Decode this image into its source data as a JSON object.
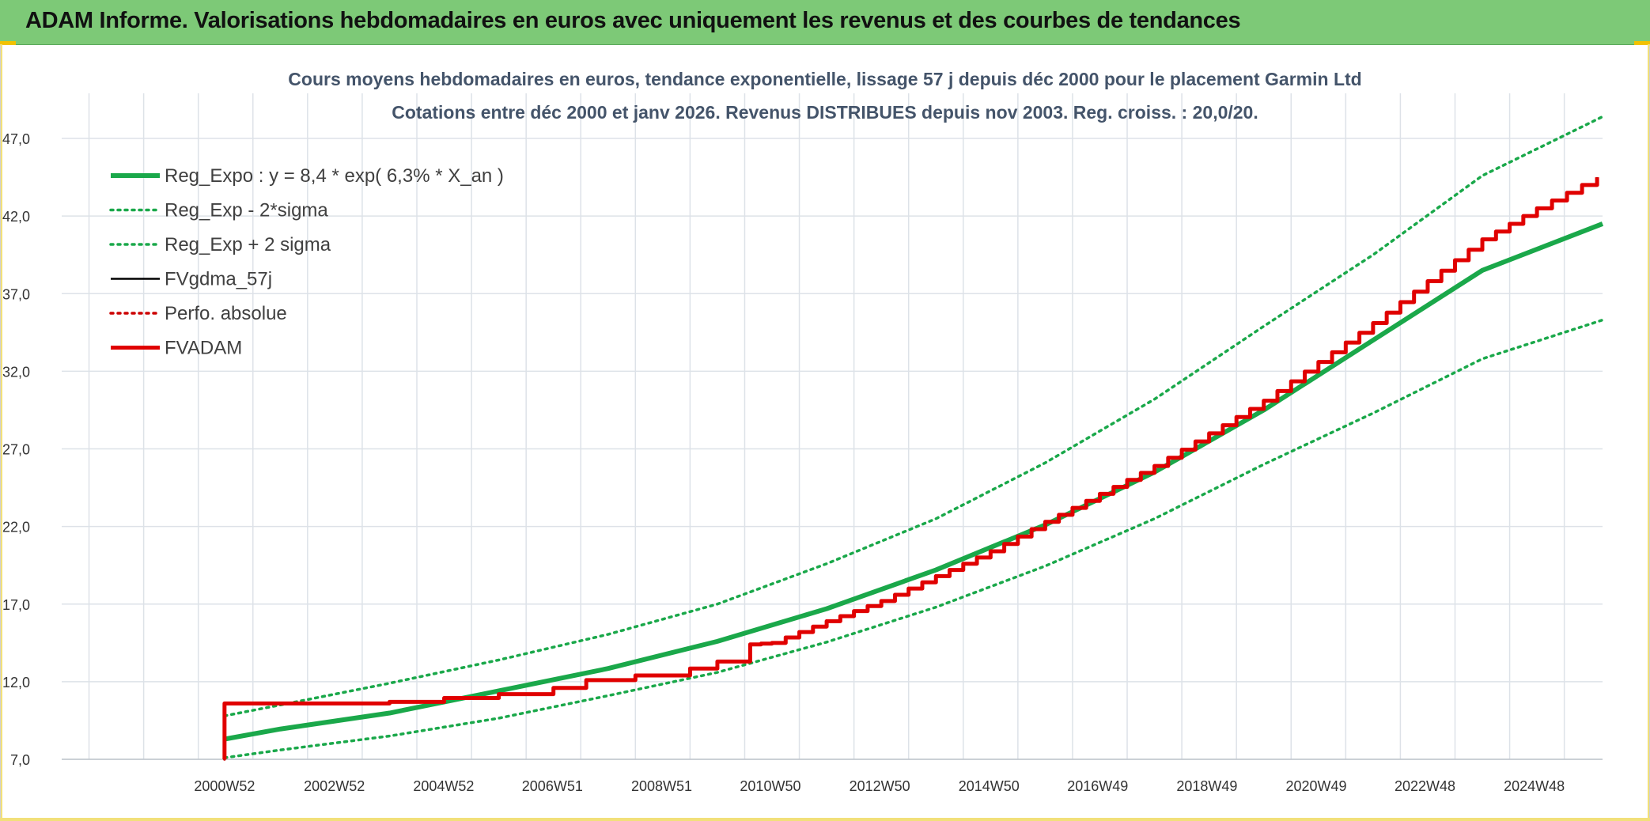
{
  "header": {
    "report_title": "ADAM Informe. Valorisations hebdomadaires en euros avec uniquement les revenus et des courbes de tendances"
  },
  "colors": {
    "header_bg": "#7dc977",
    "accent_yellow": "#f2c200",
    "reg_expo": "#1aa84a",
    "sigma_bands": "#1aa84a",
    "fvgdma": "#000000",
    "perfo_absolue": "#cc0000",
    "fvadam": "#e00000",
    "grid": "#dde2e8",
    "title_text": "#44546a"
  },
  "chart_data": {
    "type": "line",
    "title": "Cours moyens hebdomadaires en euros, tendance exponentielle, lissage 57 j depuis déc 2000 pour le placement Garmin Ltd",
    "subtitle": "Cotations entre déc 2000 et janv 2026. Revenus DISTRIBUES depuis nov 2003. Reg. croiss. : 20,0/20.",
    "xlabel": "",
    "ylabel": "",
    "ylim": [
      7.0,
      47.0
    ],
    "yticks": [
      "47,0",
      "42,0",
      "37,0",
      "32,0",
      "27,0",
      "22,0",
      "17,0",
      "12,0",
      "7,0"
    ],
    "xlim": [
      1998.0,
      2026.2
    ],
    "xtick_labels": [
      "2000W52",
      "2002W52",
      "2004W52",
      "2006W51",
      "2008W51",
      "2010W50",
      "2012W50",
      "2014W50",
      "2016W49",
      "2018W49",
      "2020W49",
      "2022W48",
      "2024W48"
    ],
    "xtick_positions": [
      2000.98,
      2002.99,
      2004.99,
      2006.98,
      2008.98,
      2010.97,
      2012.97,
      2014.97,
      2016.96,
      2018.96,
      2020.96,
      2022.95,
      2024.95
    ],
    "grid": true,
    "legend_position": "top-left",
    "series": [
      {
        "name": "Reg_Expo : y = 8,4 * exp( 6,3% *  X_an )",
        "style": "solid-thick",
        "x": [
          2000.98,
          2002,
          2004,
          2006,
          2008,
          2010,
          2012,
          2014,
          2016,
          2018,
          2020,
          2022,
          2024,
          2026.2
        ],
        "values": [
          8.3,
          8.95,
          9.98,
          11.41,
          12.85,
          14.6,
          16.7,
          19.2,
          22.1,
          25.5,
          29.5,
          34.0,
          38.5,
          41.5
        ]
      },
      {
        "name": "Reg_Exp - 2*sigma",
        "style": "dotted",
        "x": [
          2000.98,
          2002,
          2004,
          2006,
          2008,
          2010,
          2012,
          2014,
          2016,
          2018,
          2020,
          2022,
          2024,
          2026.2
        ],
        "values": [
          7.1,
          7.6,
          8.5,
          9.65,
          11.1,
          12.6,
          14.55,
          16.8,
          19.45,
          22.5,
          26.0,
          29.3,
          32.8,
          35.3
        ]
      },
      {
        "name": "Reg_Exp + 2 sigma",
        "style": "dotted",
        "x": [
          2000.98,
          2002,
          2004,
          2006,
          2008,
          2010,
          2012,
          2014,
          2016,
          2018,
          2020,
          2022,
          2024,
          2026.2
        ],
        "values": [
          9.8,
          10.5,
          11.9,
          13.4,
          15.05,
          17.0,
          19.6,
          22.5,
          26.1,
          30.2,
          34.9,
          39.5,
          44.6,
          48.4
        ]
      },
      {
        "name": "FVgdma_57j",
        "style": "solid",
        "x": [
          2000.98,
          2000.98,
          2004.0,
          2005.0,
          2006.0,
          2007.0,
          2007.6,
          2008.5,
          2009.5,
          2010.0,
          2010.6,
          2011.0,
          2012.0,
          2013.0,
          2014.0,
          2015.0,
          2016.0,
          2017.0,
          2018.0,
          2019.0,
          2020.0,
          2021.0,
          2022.0,
          2023.0,
          2024.0,
          2025.0,
          2026.1
        ],
        "values": [
          7.0,
          10.6,
          10.7,
          10.95,
          11.2,
          11.6,
          12.1,
          12.4,
          12.85,
          13.3,
          14.4,
          14.5,
          15.9,
          17.2,
          18.8,
          20.4,
          22.3,
          24.1,
          25.9,
          28.0,
          30.1,
          32.6,
          35.1,
          37.8,
          40.5,
          42.5,
          44.5
        ]
      },
      {
        "name": "Perfo. absolue",
        "style": "dotted",
        "x": [
          2000.98,
          2000.98,
          2004.0,
          2005.0,
          2006.0,
          2007.0,
          2007.6,
          2008.5,
          2009.5,
          2010.0,
          2010.6,
          2011.0,
          2012.0,
          2013.0,
          2014.0,
          2015.0,
          2016.0,
          2017.0,
          2018.0,
          2019.0,
          2020.0,
          2021.0,
          2022.0,
          2023.0,
          2024.0,
          2025.0,
          2026.1
        ],
        "values": [
          7.0,
          10.6,
          10.7,
          10.95,
          11.2,
          11.6,
          12.1,
          12.4,
          12.85,
          13.3,
          14.4,
          14.5,
          15.9,
          17.2,
          18.8,
          20.4,
          22.3,
          24.1,
          25.9,
          28.0,
          30.1,
          32.6,
          35.1,
          37.8,
          40.5,
          42.5,
          44.5
        ]
      },
      {
        "name": "FVADAM",
        "style": "solid-thick",
        "x": [
          2000.98,
          2000.98,
          2004.0,
          2005.0,
          2006.0,
          2007.0,
          2007.6,
          2008.5,
          2009.5,
          2010.0,
          2010.6,
          2011.0,
          2012.0,
          2013.0,
          2014.0,
          2015.0,
          2016.0,
          2017.0,
          2018.0,
          2019.0,
          2020.0,
          2021.0,
          2022.0,
          2023.0,
          2024.0,
          2025.0,
          2026.1
        ],
        "values": [
          7.0,
          10.6,
          10.7,
          10.95,
          11.2,
          11.6,
          12.1,
          12.4,
          12.85,
          13.3,
          14.4,
          14.5,
          15.9,
          17.2,
          18.8,
          20.4,
          22.3,
          24.1,
          25.9,
          28.0,
          30.1,
          32.6,
          35.1,
          37.8,
          40.5,
          42.5,
          44.5
        ]
      }
    ]
  }
}
